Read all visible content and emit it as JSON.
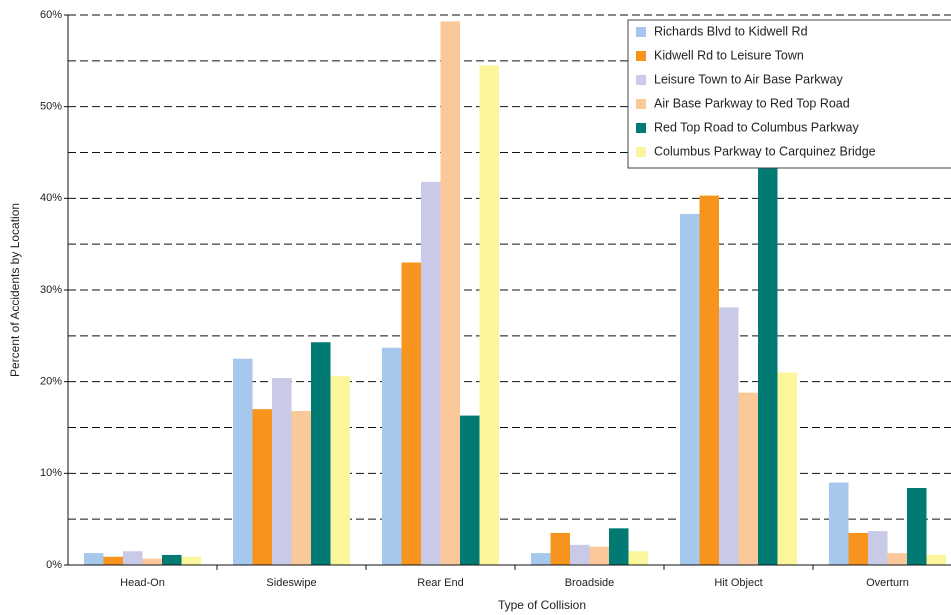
{
  "chart_data": {
    "type": "bar",
    "x_label": "Type of Collision",
    "y_label": "Percent of Accidents by Location",
    "categories": [
      "Head-On",
      "Sideswipe",
      "Rear End",
      "Broadside",
      "Hit Object",
      "Overturn"
    ],
    "series": [
      {
        "name": "Richards Blvd to Kidwell Rd",
        "color": "#a6c8ec",
        "values": [
          1.3,
          22.5,
          23.7,
          1.3,
          38.3,
          9.0
        ]
      },
      {
        "name": "Kidwell Rd to Leisure Town",
        "color": "#f7941d",
        "values": [
          0.9,
          17.0,
          33.0,
          3.5,
          40.3,
          3.5
        ]
      },
      {
        "name": "Leisure Town to Air Base Parkway",
        "color": "#c9c9e8",
        "values": [
          1.5,
          20.4,
          41.8,
          2.2,
          28.1,
          3.7
        ]
      },
      {
        "name": "Air Base Parkway to Red Top Road",
        "color": "#fbc89a",
        "values": [
          0.7,
          16.8,
          59.3,
          2.0,
          18.8,
          1.3
        ]
      },
      {
        "name": "Red Top Road to Columbus Parkway",
        "color": "#007a72",
        "values": [
          1.1,
          24.3,
          16.3,
          4.0,
          43.5,
          8.4
        ]
      },
      {
        "name": "Columbus Parkway to Carquinez Bridge",
        "color": "#fbf59b",
        "values": [
          0.9,
          20.6,
          54.5,
          1.5,
          21.0,
          1.1
        ]
      }
    ],
    "ylim": [
      0,
      60
    ],
    "yticks": [
      {
        "value": 0,
        "label": "0%"
      },
      {
        "value": 10,
        "label": "10%"
      },
      {
        "value": 20,
        "label": "20%"
      },
      {
        "value": 30,
        "label": "30%"
      },
      {
        "value": 40,
        "label": "40%"
      },
      {
        "value": 50,
        "label": "50%"
      },
      {
        "value": 60,
        "label": "60%"
      }
    ],
    "minor_gridlines": [
      5,
      15,
      25,
      35,
      45,
      55
    ],
    "grid": true,
    "legend": "top-right"
  }
}
